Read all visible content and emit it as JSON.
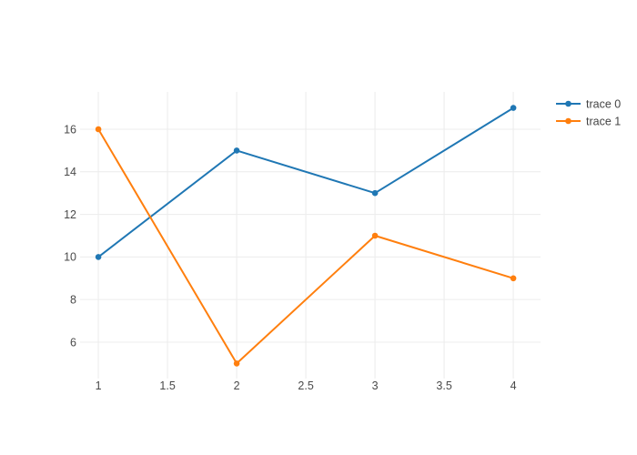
{
  "figure": {
    "background": "#ffffff"
  },
  "chart_data": {
    "type": "line",
    "mode": "lines+markers",
    "title": "",
    "xlabel": "",
    "ylabel": "",
    "x": [
      1,
      2,
      3,
      4
    ],
    "series": [
      {
        "name": "trace 0",
        "color": "#1f77b4",
        "values": [
          10,
          15,
          13,
          17
        ]
      },
      {
        "name": "trace 1",
        "color": "#ff7f0e",
        "values": [
          16,
          5,
          11,
          9
        ]
      }
    ],
    "x_ticks": [
      "1",
      "1.5",
      "2",
      "2.5",
      "3",
      "3.5",
      "4"
    ],
    "x_tick_values": [
      1,
      1.5,
      2,
      2.5,
      3,
      3.5,
      4
    ],
    "y_ticks": [
      "6",
      "8",
      "10",
      "12",
      "14",
      "16"
    ],
    "y_tick_values": [
      6,
      8,
      10,
      12,
      14,
      16
    ],
    "xlim": [
      0.868,
      4.197
    ],
    "ylim": [
      4.29,
      17.75
    ],
    "grid": true,
    "grid_color": "#ececec",
    "tick_label_color": "#4a4a4a",
    "legend": {
      "position": "top-right-outside",
      "entries": [
        "trace 0",
        "trace 1"
      ]
    }
  }
}
